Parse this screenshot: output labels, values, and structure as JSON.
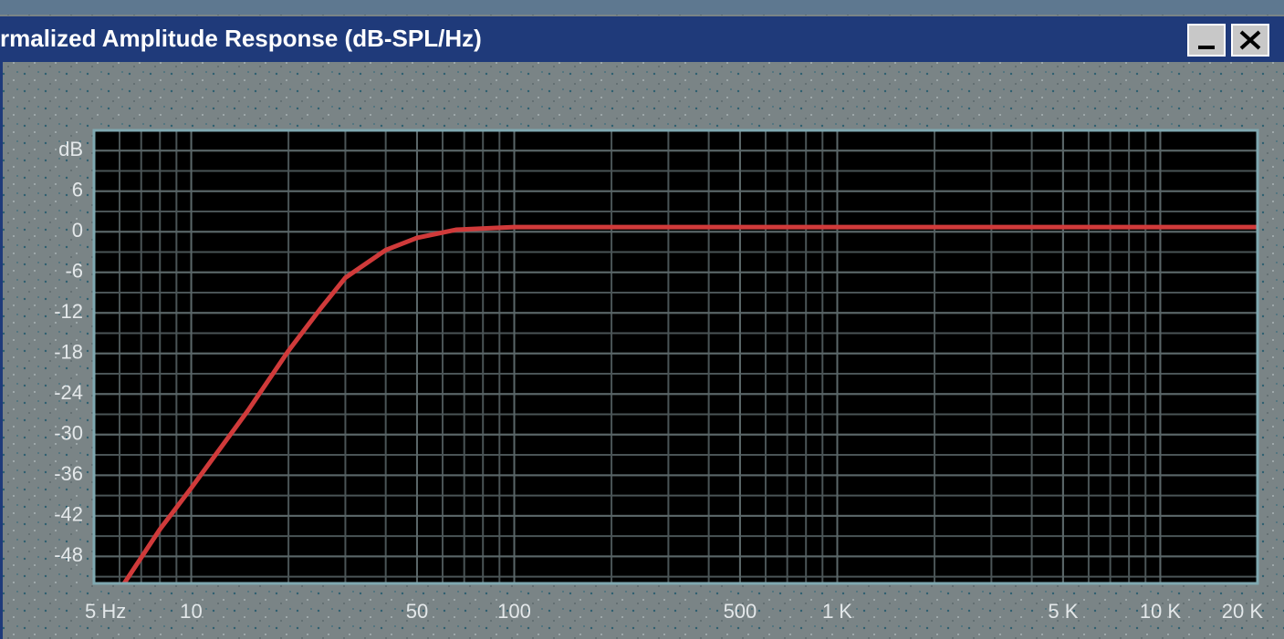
{
  "window": {
    "title": "rmalized Amplitude Response (dB-SPL/Hz)"
  },
  "chart_data": {
    "type": "line",
    "x": [
      6.2,
      8,
      10,
      15,
      20,
      25,
      30,
      40,
      50,
      66,
      100,
      1000,
      20000
    ],
    "series": [
      {
        "color": "#d03a3a",
        "values": [
          -52,
          -44,
          -37.9,
          -26.4,
          -17.6,
          -11.5,
          -6.8,
          -2.7,
          -0.9,
          0.3,
          0.7,
          0.7,
          0.7
        ]
      }
    ],
    "xlim": [
      5,
      20000
    ],
    "xscale": "log",
    "xticks": [
      {
        "value": 5,
        "label": "5 Hz"
      },
      10,
      50,
      100,
      500,
      {
        "value": 1000,
        "label": "1 K"
      },
      {
        "value": 5000,
        "label": "5 K"
      },
      {
        "value": 10000,
        "label": "10 K"
      },
      {
        "value": 20000,
        "label": "20 K"
      }
    ],
    "ylim": [
      -52,
      15
    ],
    "yticks": [
      {
        "value": 12,
        "label": "dB"
      },
      6,
      0,
      -6,
      -12,
      -18,
      -24,
      -30,
      -36,
      -42,
      -48
    ],
    "grid": true
  }
}
